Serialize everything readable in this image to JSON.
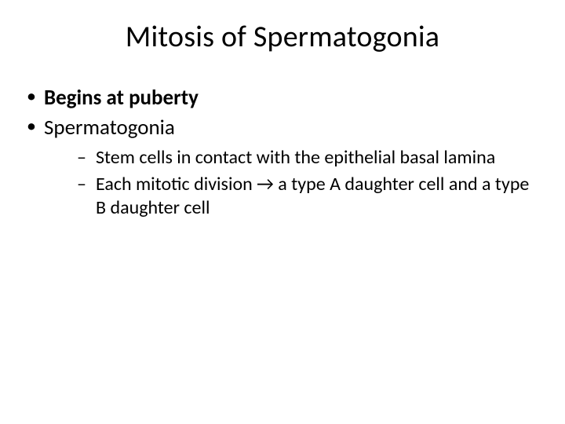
{
  "slide": {
    "background_color": "#ffffff",
    "text_color": "#000000",
    "font_family": "Calibri",
    "title": {
      "text": "Mitosis of Spermatogonia",
      "fontsize": 38,
      "weight": 400,
      "align": "center"
    },
    "bullets": [
      {
        "text": "Begins at puberty",
        "bold": true,
        "fontsize": 27,
        "marker": "•"
      },
      {
        "text": "Spermatogonia",
        "bold": false,
        "fontsize": 27,
        "marker": "•",
        "children": [
          {
            "text": "Stem cells in contact with the epithelial basal lamina",
            "fontsize": 24,
            "marker": "–"
          },
          {
            "text": "Each mitotic division →  a type A daughter cell and a type B daughter cell",
            "fontsize": 24,
            "marker": "–"
          }
        ]
      }
    ]
  }
}
